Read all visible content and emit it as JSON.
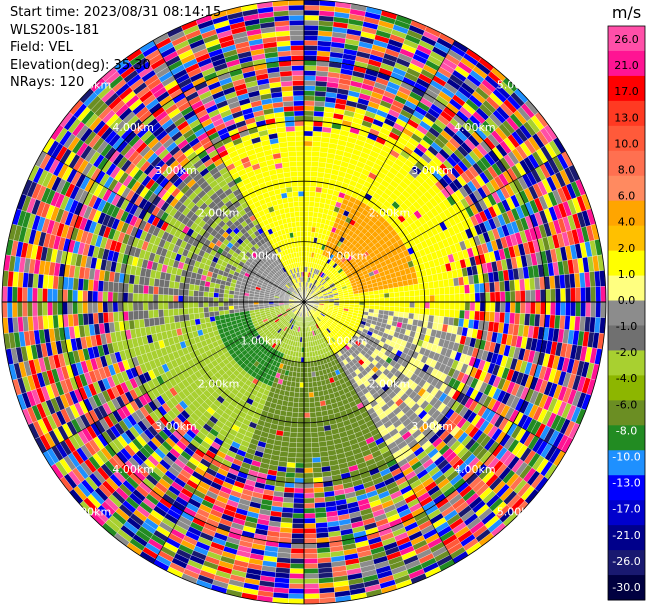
{
  "header": {
    "start_time": "Start time: 2023/08/31 08:14:15",
    "station": "WLS200s-181",
    "field": "Field: VEL",
    "elevation": "Elevation(deg): 35.30",
    "nrays": "NRays: 120"
  },
  "chart_data": {
    "type": "heatmap",
    "projection": "polar-ppi",
    "field": "VEL",
    "nrays": 120,
    "range_rings_km": [
      1.0,
      2.0,
      3.0,
      4.0,
      5.0
    ],
    "ring_labels": [
      "1.00km",
      "2.00km",
      "3.00km",
      "4.00km",
      "5.00km"
    ],
    "colorbar": {
      "unit": "m/s",
      "ticks": [
        "26.0",
        "21.0",
        "17.0",
        "13.0",
        "10.0",
        "8.0",
        "6.0",
        "4.0",
        "2.0",
        "1.0",
        "0.0",
        "-1.0",
        "-2.0",
        "-4.0",
        "-6.0",
        "-8.0",
        "-10.0",
        "-13.0",
        "-17.0",
        "-21.0",
        "-26.0",
        "-30.0"
      ],
      "colors": [
        "#ff4fa8",
        "#ff1493",
        "#ff0000",
        "#ff3a22",
        "#ff5a3a",
        "#ff7050",
        "#ff8a60",
        "#ffa500",
        "#ffc000",
        "#ffff00",
        "#ffff80",
        "#8c8c8c",
        "#707070",
        "#a8d030",
        "#8db600",
        "#6b8e23",
        "#228b22",
        "#1e90ff",
        "#0000ff",
        "#0000cd",
        "#00008b",
        "#191970",
        "#000040"
      ]
    },
    "pattern": {
      "inner_region_km": 2.5,
      "positive_sector": "north and east (yellow/orange, +2 to +6 m/s)",
      "negative_sector": "south and west (green, -2 to -6 m/s)",
      "outer_region": "noisy random velocities beyond ~3 km"
    }
  }
}
